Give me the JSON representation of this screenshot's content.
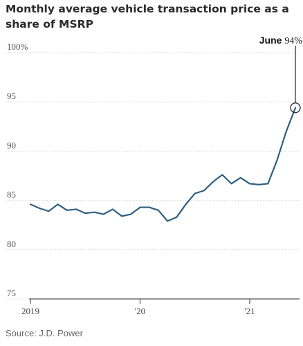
{
  "chart_data": {
    "type": "line",
    "title": "Monthly average vehicle transaction price as a share of MSRP",
    "source": "Source: J.D. Power",
    "ylim": [
      75,
      100
    ],
    "y_ticks": [
      100,
      95,
      90,
      85,
      80,
      75
    ],
    "y_tick_labels": [
      "100%",
      "95",
      "90",
      "85",
      "80",
      "75"
    ],
    "x_tick_labels": [
      "2019",
      "'20",
      "'21"
    ],
    "grid": true,
    "annotation": {
      "label": "June",
      "value_text": "94%"
    },
    "series": [
      {
        "color": "#2d5f82",
        "x": [
          "2019-01",
          "2019-02",
          "2019-03",
          "2019-04",
          "2019-05",
          "2019-06",
          "2019-07",
          "2019-08",
          "2019-09",
          "2019-10",
          "2019-11",
          "2019-12",
          "2020-01",
          "2020-02",
          "2020-03",
          "2020-04",
          "2020-05",
          "2020-06",
          "2020-07",
          "2020-08",
          "2020-09",
          "2020-10",
          "2020-11",
          "2020-12",
          "2021-01",
          "2021-02",
          "2021-03",
          "2021-04",
          "2021-05",
          "2021-06"
        ],
        "values": [
          84.6,
          84.2,
          83.9,
          84.6,
          84.0,
          84.1,
          83.7,
          83.8,
          83.6,
          84.1,
          83.4,
          83.6,
          84.3,
          84.3,
          84.0,
          82.9,
          83.3,
          84.6,
          85.7,
          86.0,
          86.9,
          87.6,
          86.7,
          87.3,
          86.7,
          86.6,
          86.7,
          89.1,
          92.0,
          94.4
        ]
      }
    ]
  }
}
